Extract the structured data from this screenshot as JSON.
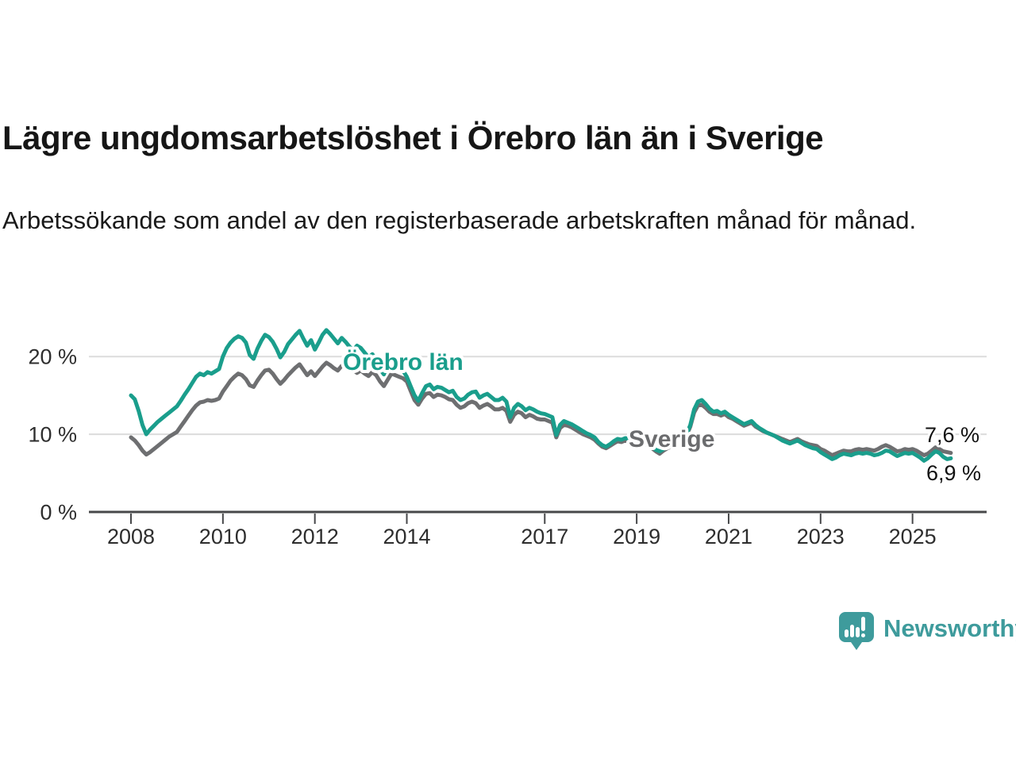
{
  "header": {
    "title": "Lägre ungdomsarbetslöshet i Örebro län än i Sverige",
    "subtitle": "Arbetssökande som andel av den registerbaserade arbetskraften månad för månad."
  },
  "colors": {
    "orebro_line": "#1a9e8c",
    "sverige_line": "#6e6f71",
    "sverige_label": "#6b6c6e",
    "brand_teal": "#3e9b9c",
    "gridline": "#dcdcdc",
    "axis": "#47484a"
  },
  "chart_data": {
    "type": "line",
    "title": "Lägre ungdomsarbetslöshet i Örebro län än i Sverige",
    "subtitle": "Arbetssökande som andel av den registerbaserade arbetskraften månad för månad.",
    "x_start_year": 2008,
    "x_start_month": 1,
    "x_interval": "monthly",
    "x_end_year": 2025,
    "x_end_month": 11,
    "ylim": [
      0,
      24.5
    ],
    "grid": "horizontal-only",
    "y_ticks": [
      {
        "value": 0,
        "label": "0 %"
      },
      {
        "value": 10,
        "label": "10 %"
      },
      {
        "value": 20,
        "label": "20 %"
      }
    ],
    "x_ticks": [
      2008,
      2010,
      2012,
      2014,
      2017,
      2019,
      2021,
      2023,
      2025
    ],
    "series": [
      {
        "name": "Sverige",
        "color": "#6e6f71",
        "label_color": "#6b6c6e",
        "end_label": "7,6 %",
        "end_value": 7.6,
        "values": [
          9.6,
          9.2,
          8.6,
          7.9,
          7.4,
          7.7,
          8.1,
          8.5,
          8.9,
          9.3,
          9.7,
          10.0,
          10.3,
          11.0,
          11.7,
          12.4,
          13.1,
          13.7,
          14.1,
          14.2,
          14.4,
          14.3,
          14.4,
          14.6,
          15.5,
          16.2,
          16.9,
          17.4,
          17.8,
          17.6,
          17.1,
          16.3,
          16.1,
          16.9,
          17.6,
          18.2,
          18.3,
          17.8,
          17.1,
          16.5,
          17.0,
          17.6,
          18.1,
          18.6,
          19.0,
          18.3,
          17.6,
          18.1,
          17.5,
          18.1,
          18.7,
          19.2,
          18.9,
          18.5,
          18.2,
          18.8,
          19.3,
          18.9,
          18.3,
          17.9,
          18.2,
          17.8,
          17.5,
          18.0,
          17.6,
          16.8,
          16.2,
          17.0,
          17.8,
          17.6,
          17.4,
          17.2,
          16.8,
          15.6,
          14.4,
          13.8,
          14.6,
          15.2,
          15.3,
          14.8,
          15.1,
          15.0,
          14.8,
          14.5,
          14.4,
          13.8,
          13.4,
          13.6,
          14.0,
          14.2,
          14.0,
          13.4,
          13.7,
          13.9,
          13.6,
          13.2,
          13.2,
          13.4,
          13.0,
          11.6,
          12.5,
          12.9,
          12.7,
          12.2,
          12.5,
          12.3,
          12.0,
          11.9,
          11.9,
          11.7,
          11.5,
          9.6,
          10.8,
          11.2,
          11.1,
          10.9,
          10.6,
          10.3,
          10.0,
          9.8,
          9.6,
          9.3,
          8.8,
          8.4,
          8.2,
          8.5,
          8.8,
          9.1,
          9.0,
          9.2,
          9.1,
          9.0,
          9.2,
          9.0,
          8.8,
          8.5,
          8.2,
          7.8,
          7.5,
          7.9,
          8.2,
          8.4,
          8.6,
          8.8,
          9.4,
          9.8,
          11.0,
          12.8,
          13.7,
          13.8,
          13.4,
          12.9,
          12.6,
          12.6,
          12.4,
          12.6,
          12.2,
          12.0,
          11.7,
          11.4,
          11.1,
          11.3,
          11.5,
          11.0,
          10.7,
          10.4,
          10.2,
          10.0,
          9.8,
          9.6,
          9.4,
          9.2,
          9.0,
          9.2,
          9.4,
          9.1,
          8.9,
          8.7,
          8.6,
          8.5,
          8.1,
          7.9,
          7.6,
          7.3,
          7.5,
          7.7,
          7.9,
          7.8,
          7.8,
          8.0,
          8.1,
          8.0,
          8.1,
          8.0,
          7.9,
          8.1,
          8.4,
          8.6,
          8.4,
          8.1,
          7.8,
          7.9,
          8.1,
          8.0,
          8.1,
          7.9,
          7.6,
          7.3,
          7.5,
          7.9,
          8.3,
          8.1,
          7.8,
          7.7,
          7.6
        ]
      },
      {
        "name": "Örebro län",
        "color": "#1a9e8c",
        "label_color": "#1a9e8c",
        "end_label": "6,9 %",
        "end_value": 6.9,
        "values": [
          15.0,
          14.5,
          13.0,
          11.2,
          10.0,
          10.6,
          11.1,
          11.6,
          12.0,
          12.4,
          12.8,
          13.2,
          13.6,
          14.3,
          15.1,
          15.8,
          16.6,
          17.4,
          17.8,
          17.6,
          18.0,
          17.8,
          18.1,
          18.4,
          20.0,
          21.1,
          21.8,
          22.3,
          22.6,
          22.4,
          21.8,
          20.2,
          19.7,
          21.0,
          22.0,
          22.8,
          22.5,
          21.9,
          21.0,
          19.9,
          20.6,
          21.6,
          22.2,
          22.8,
          23.3,
          22.3,
          21.4,
          22.1,
          20.9,
          21.8,
          22.8,
          23.4,
          22.9,
          22.3,
          21.7,
          22.4,
          21.9,
          21.3,
          20.8,
          21.4,
          21.1,
          20.5,
          19.9,
          20.3,
          19.7,
          18.4,
          17.7,
          18.9,
          19.5,
          19.0,
          18.6,
          18.2,
          17.4,
          16.2,
          15.0,
          14.3,
          15.3,
          16.2,
          16.4,
          15.8,
          16.1,
          16.0,
          15.7,
          15.4,
          15.6,
          14.8,
          14.4,
          14.6,
          15.1,
          15.4,
          15.5,
          14.7,
          15.0,
          15.2,
          14.8,
          14.4,
          14.4,
          14.7,
          14.2,
          12.2,
          13.4,
          13.9,
          13.6,
          13.1,
          13.4,
          13.2,
          12.9,
          12.7,
          12.6,
          12.4,
          12.2,
          9.9,
          11.2,
          11.7,
          11.5,
          11.3,
          11.0,
          10.7,
          10.4,
          10.1,
          9.9,
          9.6,
          9.0,
          8.6,
          8.4,
          8.7,
          9.1,
          9.4,
          9.3,
          9.5,
          9.4,
          9.2,
          9.4,
          9.2,
          9.0,
          8.7,
          8.4,
          8.0,
          7.8,
          8.1,
          8.4,
          8.6,
          8.8,
          9.0,
          9.6,
          10.0,
          11.2,
          13.2,
          14.2,
          14.4,
          13.9,
          13.3,
          12.9,
          13.0,
          12.7,
          12.9,
          12.5,
          12.2,
          11.9,
          11.6,
          11.3,
          11.5,
          11.7,
          11.2,
          10.8,
          10.5,
          10.2,
          10.0,
          9.8,
          9.5,
          9.2,
          9.0,
          8.8,
          9.0,
          9.2,
          8.9,
          8.6,
          8.4,
          8.2,
          8.1,
          7.7,
          7.4,
          7.1,
          6.8,
          7.0,
          7.3,
          7.5,
          7.4,
          7.3,
          7.5,
          7.6,
          7.5,
          7.6,
          7.5,
          7.3,
          7.4,
          7.6,
          7.9,
          7.8,
          7.5,
          7.2,
          7.4,
          7.6,
          7.5,
          7.6,
          7.3,
          7.0,
          6.6,
          6.9,
          7.4,
          7.8,
          7.6,
          7.1,
          6.8,
          6.9
        ]
      }
    ],
    "annotations": {
      "orebro_label": "Örebro län",
      "sverige_label": "Sverige",
      "end_label_sverige": "7,6 %",
      "end_label_orebro": "6,9 %"
    },
    "legend_position": "inline-labels"
  },
  "footer": {
    "brand": "Newsworthy"
  }
}
